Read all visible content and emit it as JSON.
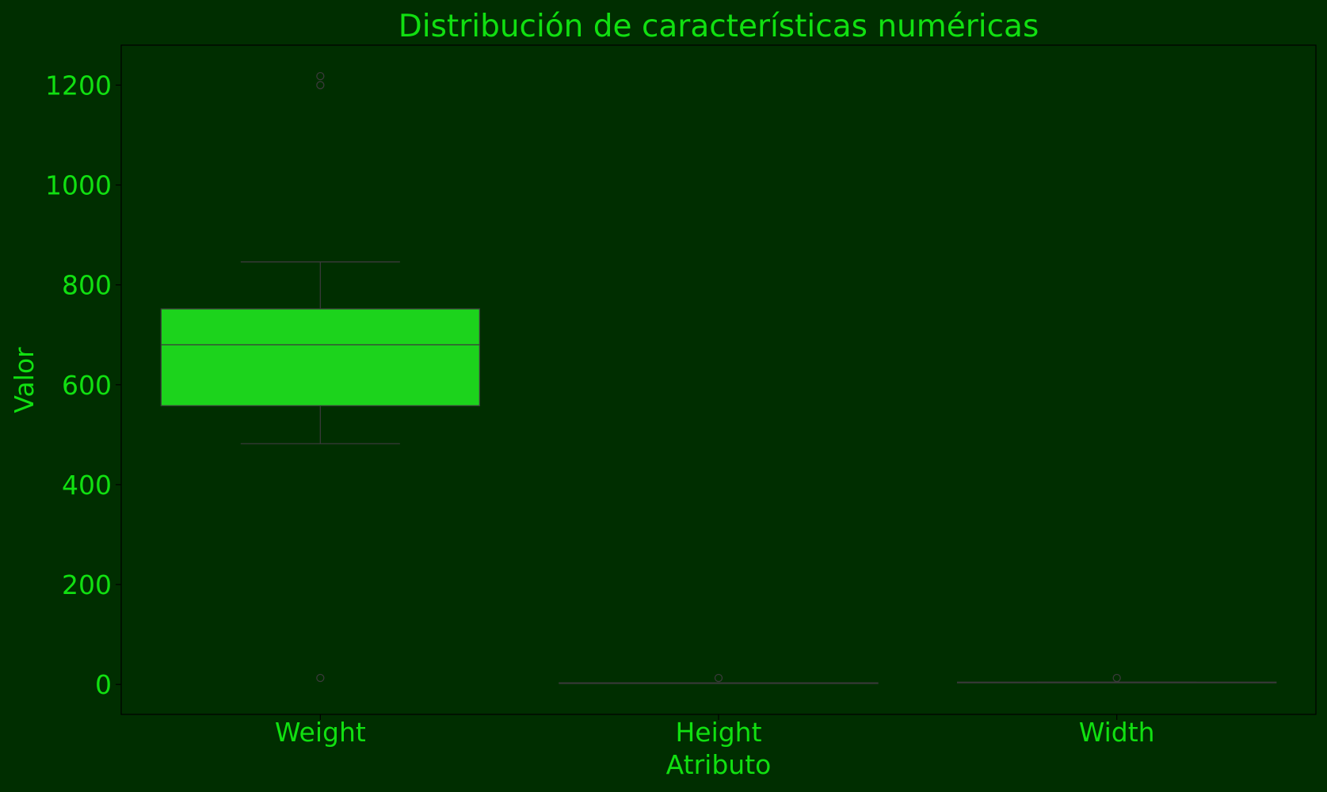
{
  "chart_data": {
    "type": "box",
    "title": "Distribución de características numéricas",
    "xlabel": "Atributo",
    "ylabel": "Valor",
    "ylim": [
      -60,
      1280
    ],
    "yticks": [
      0,
      200,
      400,
      600,
      800,
      1000,
      1200
    ],
    "categories": [
      "Weight",
      "Height",
      "Width"
    ],
    "boxes": [
      {
        "category": "Weight",
        "whisker_low": 482,
        "q1": 558,
        "median": 680,
        "q3": 752,
        "whisker_high": 846,
        "outliers": [
          1200,
          1218,
          13
        ]
      },
      {
        "category": "Height",
        "whisker_low": 2.9,
        "q1": 2.9,
        "median": 3,
        "q3": 3.2,
        "whisker_high": 3.2,
        "outliers": [
          13
        ]
      },
      {
        "category": "Width",
        "whisker_low": 4,
        "q1": 4,
        "median": 4.2,
        "q3": 4.5,
        "whisker_high": 4.5,
        "outliers": [
          13
        ]
      }
    ],
    "grid": false,
    "colors": {
      "background": "#002e00",
      "axes_bg": "#002e00",
      "text": "#11e011",
      "box_fill": "#1cd31c",
      "box_line": "#3a3a3a",
      "axis_line": "#000000"
    }
  }
}
